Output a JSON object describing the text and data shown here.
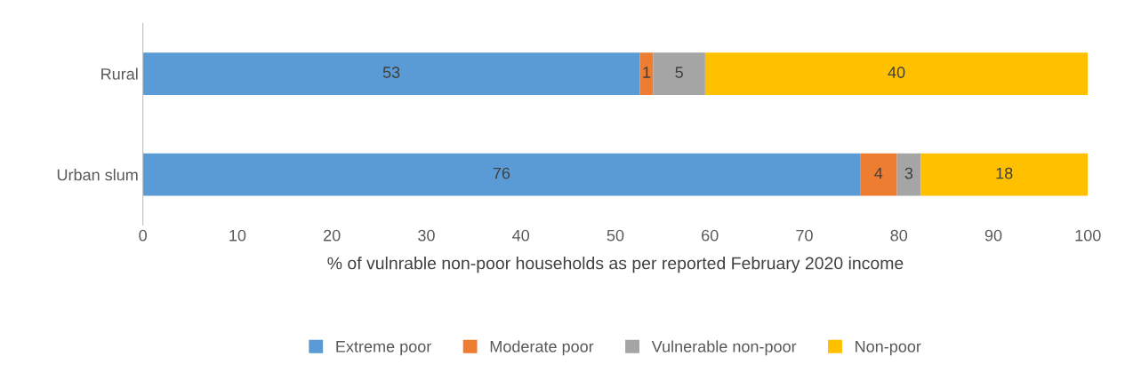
{
  "chart_data": {
    "type": "bar",
    "orientation": "horizontal",
    "stacked": true,
    "categories": [
      "Rural",
      "Urban slum"
    ],
    "series": [
      {
        "name": "Extreme poor",
        "color": "#5b9bd5",
        "values": [
          52.6,
          75.9
        ],
        "value_labels": [
          "53",
          "76"
        ]
      },
      {
        "name": "Moderate poor",
        "color": "#ed7d31",
        "values": [
          1.4,
          3.9
        ],
        "value_labels": [
          "1",
          "4"
        ]
      },
      {
        "name": "Vulnerable non-poor",
        "color": "#a5a5a5",
        "values": [
          5.5,
          2.5
        ],
        "value_labels": [
          "5",
          "3"
        ]
      },
      {
        "name": "Non-poor",
        "color": "#ffc000",
        "values": [
          40.5,
          17.7
        ],
        "value_labels": [
          "40",
          "18"
        ]
      }
    ],
    "xlabel": "% of vulnrable non-poor households as per reported February 2020 income",
    "xlim": [
      0,
      100
    ],
    "xticks": [
      0,
      10,
      20,
      30,
      40,
      50,
      60,
      70,
      80,
      90,
      100
    ],
    "grid": false,
    "legend": "bottom"
  }
}
